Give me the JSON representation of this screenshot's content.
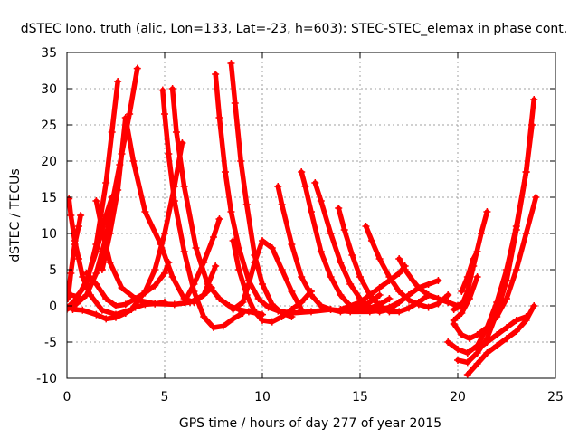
{
  "chart_data": {
    "type": "line",
    "title": "dSTEC Iono. truth (alic, Lon=133, Lat=-23, h=603): STEC-STEC_elemax in phase cont.",
    "xlabel": "GPS time / hours of day 277 of year 2015",
    "ylabel": "dSTEC  / TECUs",
    "xlim": [
      0,
      25
    ],
    "ylim": [
      -10,
      35
    ],
    "xticks": [
      "0",
      "5",
      "10",
      "15",
      "20",
      "25"
    ],
    "yticks": [
      "-10",
      "-5",
      "0",
      "5",
      "10",
      "15",
      "20",
      "25",
      "30",
      "35"
    ],
    "grid": true,
    "marker": "plus",
    "color": "#ff0000",
    "series": [
      {
        "x": [
          0.0,
          0.2,
          0.5,
          1.0,
          1.5,
          2.0,
          2.3,
          2.7,
          3.2,
          3.6
        ],
        "y": [
          -0.5,
          -0.2,
          0.3,
          1.5,
          4.5,
          9.5,
          14.0,
          19.5,
          26.5,
          32.8
        ]
      },
      {
        "x": [
          0.05,
          0.2,
          0.5,
          1.0,
          1.5,
          2.0,
          2.3,
          2.6
        ],
        "y": [
          2.0,
          1.5,
          1.3,
          3.0,
          8.5,
          17.0,
          24.0,
          31.0
        ]
      },
      {
        "x": [
          0.1,
          0.2,
          0.4,
          0.6,
          0.8,
          1.2,
          1.8,
          2.5,
          3.3,
          4.0,
          4.5,
          5.0,
          5.5,
          5.9
        ],
        "y": [
          14.8,
          12.5,
          9.0,
          6.5,
          4.0,
          1.5,
          -0.6,
          -1.2,
          -0.5,
          2.0,
          5.0,
          10.0,
          16.5,
          22.5
        ]
      },
      {
        "x": [
          0.05,
          0.2,
          0.4,
          0.6,
          0.7
        ],
        "y": [
          1.0,
          4.5,
          8.5,
          11.0,
          12.5
        ]
      },
      {
        "x": [
          0.0,
          0.5,
          1.0,
          1.5,
          2.0,
          2.3
        ],
        "y": [
          -0.3,
          1.0,
          3.5,
          7.5,
          12.5,
          15.0
        ]
      },
      {
        "x": [
          1.5,
          1.8,
          2.2,
          2.8,
          3.6,
          4.5,
          5.5,
          6.3,
          7.0,
          7.4
        ],
        "y": [
          14.5,
          10.5,
          6.0,
          2.5,
          0.8,
          0.3,
          0.2,
          0.5,
          1.5,
          2.5
        ]
      },
      {
        "x": [
          0.3,
          0.8,
          1.5,
          2.0,
          2.5,
          3.0,
          3.5,
          4.0,
          4.5,
          5.0
        ],
        "y": [
          -0.5,
          -0.6,
          -1.2,
          -1.8,
          -1.6,
          -1.0,
          -0.2,
          0.2,
          0.3,
          0.5
        ]
      },
      {
        "x": [
          1.8,
          2.2,
          2.6,
          2.8,
          3.0,
          3.4,
          4.0,
          4.8,
          5.4,
          6.0,
          6.5,
          7.0,
          7.6
        ],
        "y": [
          5.0,
          10.0,
          16.0,
          21.0,
          26.0,
          20.0,
          13.0,
          8.5,
          4.0,
          1.0,
          0.5,
          1.5,
          5.5
        ]
      },
      {
        "x": [
          1.0,
          1.5,
          2.0,
          2.5,
          3.0,
          3.5,
          4.0,
          4.5,
          5.0,
          5.2
        ],
        "y": [
          4.5,
          3.0,
          1.0,
          0.0,
          0.2,
          1.0,
          1.8,
          2.8,
          4.5,
          6.0
        ]
      },
      {
        "x": [
          4.9,
          5.0,
          5.2,
          5.5,
          6.0,
          6.5,
          7.0,
          7.5,
          8.0,
          8.5,
          9.0
        ],
        "y": [
          29.8,
          26.5,
          21.0,
          14.5,
          7.5,
          2.0,
          -1.5,
          -3.0,
          -2.8,
          -1.8,
          -1.0
        ]
      },
      {
        "x": [
          5.4,
          5.6,
          6.0,
          6.6,
          7.2,
          7.8,
          8.3,
          8.8,
          9.3,
          9.7,
          10.0
        ],
        "y": [
          30.0,
          24.0,
          16.5,
          8.0,
          3.0,
          1.0,
          0.0,
          -0.5,
          -0.8,
          -1.0,
          -1.2
        ]
      },
      {
        "x": [
          6.0,
          6.5,
          7.0,
          7.5,
          7.8
        ],
        "y": [
          0.5,
          3.0,
          6.0,
          9.5,
          12.0
        ]
      },
      {
        "x": [
          7.6,
          7.8,
          8.1,
          8.4,
          8.8,
          9.3,
          9.8,
          10.3,
          10.8,
          11.5,
          12.5,
          13.5,
          14.5,
          15.5,
          16.5
        ],
        "y": [
          32.0,
          26.0,
          18.5,
          13.0,
          8.0,
          3.5,
          1.0,
          -0.2,
          -0.7,
          -1.0,
          -0.8,
          -0.5,
          -0.8,
          -0.8,
          -0.5
        ]
      },
      {
        "x": [
          8.4,
          8.6,
          8.9,
          9.2,
          9.6,
          10.0,
          10.5,
          11.0,
          11.5
        ],
        "y": [
          33.5,
          28.0,
          20.0,
          14.0,
          7.0,
          3.0,
          0.2,
          -1.0,
          -1.5
        ]
      },
      {
        "x": [
          8.5,
          8.8,
          9.2,
          9.6,
          10.0,
          10.5,
          11.0,
          11.5,
          12.0,
          12.5
        ],
        "y": [
          9.0,
          5.0,
          1.5,
          -0.8,
          -2.0,
          -2.2,
          -1.5,
          -0.5,
          0.5,
          2.0
        ]
      },
      {
        "x": [
          8.5,
          9.0,
          9.3,
          9.6,
          10.0,
          10.5,
          11.0,
          11.5,
          12.0
        ],
        "y": [
          -0.5,
          0.5,
          3.0,
          6.0,
          9.0,
          8.0,
          5.0,
          2.0,
          -0.5
        ]
      },
      {
        "x": [
          10.8,
          11.0,
          11.5,
          12.0,
          12.5,
          13.0,
          13.5,
          14.0,
          14.5,
          15.0,
          15.5,
          16.0
        ],
        "y": [
          16.5,
          14.0,
          8.5,
          4.0,
          1.5,
          0.0,
          -0.5,
          -0.8,
          -0.6,
          -0.2,
          0.5,
          1.5
        ]
      },
      {
        "x": [
          12.0,
          12.2,
          12.5,
          13.0,
          13.5,
          14.0,
          14.5,
          15.0,
          15.5,
          16.0,
          16.5
        ],
        "y": [
          18.5,
          16.5,
          13.0,
          7.5,
          4.0,
          1.5,
          0.0,
          -0.5,
          -0.3,
          0.2,
          1.0
        ]
      },
      {
        "x": [
          12.7,
          13.0,
          13.5,
          14.0,
          14.5,
          15.0,
          15.5,
          16.0,
          16.5,
          17.0,
          17.5
        ],
        "y": [
          17.0,
          14.5,
          10.0,
          6.0,
          3.0,
          1.0,
          -0.2,
          -0.5,
          -0.2,
          0.5,
          1.5
        ]
      },
      {
        "x": [
          13.9,
          14.2,
          14.6,
          15.0,
          15.5,
          16.0,
          16.5,
          17.0,
          17.5,
          18.0,
          18.5
        ],
        "y": [
          13.5,
          10.5,
          7.0,
          4.0,
          1.5,
          0.0,
          -0.8,
          -0.8,
          -0.3,
          0.5,
          1.5
        ]
      },
      {
        "x": [
          15.3,
          15.6,
          16.0,
          16.5,
          17.0,
          17.5,
          18.0,
          18.5,
          19.0,
          19.5
        ],
        "y": [
          11.0,
          9.0,
          6.5,
          4.0,
          2.0,
          0.8,
          0.2,
          -0.2,
          0.3,
          1.5
        ]
      },
      {
        "x": [
          17.0,
          17.3,
          17.7,
          18.0,
          18.5,
          19.0,
          19.5,
          20.0,
          20.3
        ],
        "y": [
          6.5,
          5.0,
          3.5,
          2.5,
          1.5,
          1.0,
          0.5,
          0.0,
          0.5
        ]
      },
      {
        "x": [
          14.0,
          14.5,
          15.0,
          15.5,
          16.0,
          16.5,
          17.0,
          17.3
        ],
        "y": [
          -0.5,
          0.0,
          0.5,
          1.5,
          2.5,
          3.5,
          4.5,
          5.5
        ]
      },
      {
        "x": [
          15.5,
          16.0,
          16.5,
          17.0,
          17.5,
          18.0,
          18.5,
          19.0
        ],
        "y": [
          -0.5,
          -0.8,
          -0.5,
          0.5,
          1.5,
          2.5,
          3.0,
          3.5
        ]
      },
      {
        "x": [
          19.8,
          20.2,
          20.5,
          20.8,
          21.2,
          21.5
        ],
        "y": [
          -0.5,
          0.0,
          2.0,
          5.5,
          10.0,
          13.0
        ]
      },
      {
        "x": [
          19.8,
          20.2,
          20.6,
          21.0
        ],
        "y": [
          -2.0,
          -1.0,
          1.0,
          4.0
        ]
      },
      {
        "x": [
          20.2,
          20.5,
          20.8,
          21.0
        ],
        "y": [
          2.0,
          4.0,
          6.5,
          7.5
        ]
      },
      {
        "x": [
          19.8,
          20.2,
          20.6,
          21.0,
          21.5,
          22.0,
          22.5,
          23.0,
          23.5,
          24.0
        ],
        "y": [
          -2.5,
          -4.0,
          -4.5,
          -4.0,
          -3.0,
          -1.5,
          1.0,
          5.0,
          10.0,
          15.0
        ]
      },
      {
        "x": [
          19.5,
          20.0,
          20.5,
          21.0,
          21.5,
          22.0,
          22.5,
          23.0,
          23.5,
          23.8
        ],
        "y": [
          -5.0,
          -6.0,
          -6.5,
          -5.5,
          -3.0,
          0.5,
          5.0,
          11.0,
          18.5,
          25.0
        ]
      },
      {
        "x": [
          20.0,
          20.5,
          21.0,
          21.5,
          22.0,
          22.5,
          23.0,
          23.5,
          23.9
        ],
        "y": [
          -7.5,
          -7.8,
          -6.5,
          -4.5,
          -1.0,
          3.5,
          10.5,
          18.5,
          28.5
        ]
      },
      {
        "x": [
          20.5,
          21.0,
          21.5,
          22.0,
          22.5,
          23.0,
          23.5,
          23.9
        ],
        "y": [
          -9.5,
          -8.0,
          -6.5,
          -5.5,
          -4.5,
          -3.5,
          -2.0,
          0.0
        ]
      },
      {
        "x": [
          21.0,
          21.5,
          22.0,
          22.5,
          23.0,
          23.5
        ],
        "y": [
          -6.0,
          -5.0,
          -4.0,
          -3.0,
          -2.0,
          -1.5
        ]
      }
    ]
  }
}
